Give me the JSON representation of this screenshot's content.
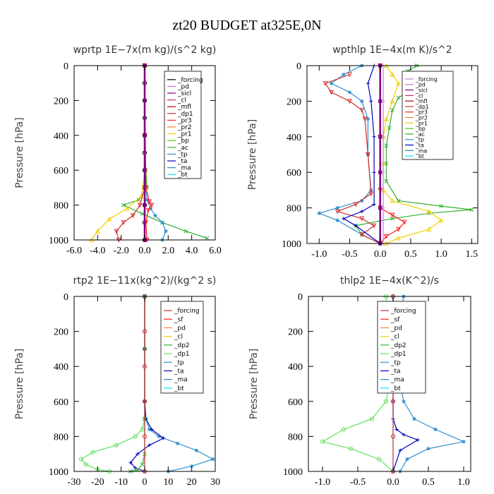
{
  "figure_title": "zt20  BUDGET at325E,0N",
  "chart_data": [
    {
      "type": "line",
      "title": "wprtp   1E−7x(m kg)/(s^2 kg)",
      "ylabel": "Pressure [hPa]",
      "xlabel": "",
      "xlim": [
        -6,
        6
      ],
      "ylim": [
        1000,
        0
      ],
      "xticks": [
        -6,
        -4,
        -2,
        0,
        2,
        4,
        6
      ],
      "xtick_labels": [
        "-6.0",
        "-4.0",
        "-2.0",
        "0.0",
        "2.0",
        "4.0",
        "6.0"
      ],
      "yticks": [
        0,
        200,
        400,
        600,
        800,
        1000
      ],
      "ytick_labels": [
        "0",
        "200",
        "400",
        "600",
        "800",
        "1000"
      ],
      "legend": [
        "_forcing",
        "_pd",
        "_sicl",
        "_cl",
        "_mfl",
        "_dp1",
        "_pr3",
        "_pr2",
        "_pr1",
        "_bp",
        "_ac",
        "_tp",
        "_ta",
        "_ma",
        "_bt"
      ],
      "legend_colors": [
        "#000000",
        "#d070d0",
        "#800080",
        "#c03060",
        "#a00000",
        "#d03030",
        "#ff2020",
        "#ff8040",
        "#f0d000",
        "#60c000",
        "#30b030",
        "#3090d0",
        "#0000c0",
        "#2090c0",
        "#00e0ff"
      ],
      "series": [
        {
          "color": "#000000",
          "marker": "o",
          "x": [
            0,
            0,
            0,
            0,
            0,
            0,
            0,
            0,
            0,
            0,
            0
          ],
          "y": [
            0,
            100,
            200,
            300,
            400,
            500,
            600,
            700,
            800,
            900,
            1000
          ]
        },
        {
          "color": "#30b030",
          "marker": "x",
          "x": [
            0,
            0,
            0.05,
            0.1,
            0.2,
            -0.5,
            -1.8,
            -0.2,
            1.5,
            3.5,
            5.3
          ],
          "y": [
            0,
            200,
            400,
            600,
            700,
            770,
            800,
            850,
            900,
            950,
            990
          ]
        },
        {
          "color": "#3090d0",
          "marker": "*",
          "x": [
            0,
            0,
            0,
            0.1,
            0.2,
            0.5,
            0.9,
            1.5,
            1.8,
            1.5
          ],
          "y": [
            0,
            300,
            600,
            700,
            770,
            820,
            860,
            900,
            950,
            1000
          ]
        },
        {
          "color": "#f0d000",
          "marker": "^",
          "x": [
            0,
            0,
            0.05,
            -0.3,
            -1.5,
            -3.0,
            -4.0,
            -4.5
          ],
          "y": [
            0,
            400,
            600,
            750,
            820,
            880,
            950,
            1000
          ]
        },
        {
          "color": "#d03030",
          "marker": "v",
          "x": [
            0,
            0,
            0,
            -0.4,
            -1.0,
            -1.8,
            -2.4,
            -2.2
          ],
          "y": [
            0,
            400,
            700,
            800,
            860,
            900,
            950,
            1000
          ]
        },
        {
          "color": "#ff2020",
          "marker": "v",
          "x": [
            0,
            0,
            0.1,
            0.4,
            0.6,
            0.3,
            0.1,
            0.2
          ],
          "y": [
            0,
            400,
            700,
            780,
            800,
            830,
            900,
            1000
          ]
        },
        {
          "color": "#800080",
          "marker": "s",
          "x": [
            0,
            0,
            0,
            0,
            0,
            0
          ],
          "y": [
            0,
            200,
            400,
            600,
            800,
            1000
          ]
        }
      ]
    },
    {
      "type": "line",
      "title": "wpthlp   1E−4x(m K)/s^2",
      "ylabel": "Pressure [hPa]",
      "xlabel": "",
      "xlim": [
        -1.2,
        1.6
      ],
      "ylim": [
        1000,
        0
      ],
      "xticks": [
        -1.0,
        -0.5,
        0.0,
        0.5,
        1.0,
        1.5
      ],
      "xtick_labels": [
        "-1.0",
        "-0.5",
        "0.0",
        "0.5",
        "1.0",
        "1.5"
      ],
      "yticks": [
        0,
        200,
        400,
        600,
        800,
        1000
      ],
      "ytick_labels": [
        "0",
        "200",
        "400",
        "600",
        "800",
        "1000"
      ],
      "legend": [
        "_forcing",
        "_pd",
        "_sicl",
        "_cl",
        "_mfl",
        "_dp1",
        "_pr3",
        "_pr2",
        "_pr1",
        "_bp",
        "_ac",
        "_tp",
        "_ta",
        "_ma",
        "_bt"
      ],
      "legend_colors": [
        "#c080e0",
        "#d070d0",
        "#800080",
        "#c03060",
        "#a00000",
        "#d03030",
        "#ff2020",
        "#ff8040",
        "#f0d000",
        "#60c000",
        "#30b030",
        "#3090d0",
        "#0000c0",
        "#2090c0",
        "#00e0ff"
      ],
      "series": [
        {
          "color": "#30b030",
          "marker": "x",
          "x": [
            0.6,
            0.45,
            0.5,
            0.7,
            0.5,
            0.3,
            0.2,
            0.15,
            0.1,
            0.1,
            0.1,
            0.3,
            1.0,
            1.5,
            0.8,
            0.2,
            -0.4,
            -0.3,
            0
          ],
          "y": [
            0,
            30,
            60,
            100,
            140,
            180,
            250,
            350,
            450,
            550,
            650,
            760,
            790,
            810,
            830,
            860,
            900,
            950,
            1000
          ]
        },
        {
          "color": "#f0d000",
          "marker": "^",
          "x": [
            0.1,
            0.2,
            0.3,
            0.2,
            0.1,
            0.05,
            0.05,
            0.05,
            0.2,
            0.8,
            1.0,
            0.8,
            0.3,
            0.1
          ],
          "y": [
            0,
            50,
            100,
            200,
            300,
            400,
            550,
            700,
            760,
            820,
            870,
            920,
            970,
            1000
          ]
        },
        {
          "color": "#3090d0",
          "marker": "*",
          "x": [
            -0.3,
            -0.6,
            -0.8,
            -0.5,
            -0.3,
            -0.2,
            -0.2,
            -0.15,
            -0.3,
            -0.7,
            -1.0,
            -0.7,
            -0.3,
            0
          ],
          "y": [
            0,
            50,
            100,
            150,
            200,
            300,
            500,
            700,
            760,
            800,
            830,
            870,
            950,
            1000
          ]
        },
        {
          "color": "#d03030",
          "marker": "v",
          "x": [
            -0.5,
            -0.9,
            -0.8,
            -0.5,
            -0.3,
            -0.25,
            -0.2,
            -0.15,
            -0.4,
            -0.7,
            -0.3,
            -0.1,
            -0.3,
            0
          ],
          "y": [
            50,
            100,
            150,
            200,
            250,
            300,
            500,
            720,
            780,
            820,
            860,
            900,
            950,
            1000
          ]
        },
        {
          "color": "#ff2020",
          "marker": "v",
          "x": [
            0,
            0,
            0,
            0,
            0.2,
            0.4,
            0.3,
            0.1,
            0
          ],
          "y": [
            0,
            400,
            700,
            800,
            840,
            880,
            920,
            960,
            1000
          ]
        },
        {
          "color": "#0000c0",
          "marker": "+",
          "x": [
            -0.1,
            -0.2,
            -0.15,
            -0.1,
            -0.1,
            -0.1,
            -0.3,
            -0.6,
            -0.4,
            0
          ],
          "y": [
            0,
            100,
            200,
            400,
            600,
            780,
            820,
            860,
            900,
            1000
          ]
        },
        {
          "color": "#800080",
          "marker": "s",
          "x": [
            0,
            0,
            0,
            0,
            0,
            0
          ],
          "y": [
            0,
            200,
            400,
            600,
            800,
            1000
          ]
        },
        {
          "color": "#c080e0",
          "marker": "+",
          "x": [
            0.05,
            0.05,
            0.05,
            0.05,
            0.05,
            0.05
          ],
          "y": [
            0,
            200,
            400,
            600,
            800,
            1000
          ]
        }
      ]
    },
    {
      "type": "line",
      "title": "rtp2   1E−11x(kg^2)/(kg^2 s)",
      "ylabel": "Pressure [hPa]",
      "xlabel": "",
      "xlim": [
        -30,
        30
      ],
      "ylim": [
        1000,
        0
      ],
      "xticks": [
        -30,
        -20,
        -10,
        0,
        10,
        20,
        30
      ],
      "xtick_labels": [
        "-30",
        "-20",
        "-10",
        "0",
        "10",
        "20",
        "30"
      ],
      "yticks": [
        0,
        200,
        400,
        600,
        800,
        1000
      ],
      "ytick_labels": [
        "0",
        "200",
        "400",
        "600",
        "800",
        "1000"
      ],
      "legend": [
        "_forcing",
        "_sf",
        "_pd",
        "_cl",
        "_dp2",
        "_dp1",
        "_tp",
        "_ta",
        "_ma",
        "_bt"
      ],
      "legend_colors": [
        "#c03030",
        "#ff2020",
        "#ff8040",
        "#f0d000",
        "#30b030",
        "#60e060",
        "#3090d0",
        "#0000c0",
        "#2090c0",
        "#00e0ff"
      ],
      "series": [
        {
          "color": "#60e060",
          "marker": "o",
          "x": [
            0,
            0,
            0,
            0,
            -1,
            -4,
            -12,
            -22,
            -27,
            -25,
            -20,
            -15
          ],
          "y": [
            0,
            300,
            600,
            700,
            760,
            800,
            850,
            890,
            930,
            960,
            990,
            1000
          ]
        },
        {
          "color": "#3090d0",
          "marker": "*",
          "x": [
            0,
            0,
            0,
            0.5,
            2,
            6,
            14,
            22,
            29,
            20,
            10
          ],
          "y": [
            0,
            300,
            600,
            700,
            760,
            800,
            840,
            880,
            930,
            970,
            1000
          ]
        },
        {
          "color": "#0000c0",
          "marker": "+",
          "x": [
            0,
            0,
            0,
            0.5,
            3,
            8,
            2,
            -3,
            -6,
            -4,
            0
          ],
          "y": [
            0,
            300,
            600,
            700,
            760,
            810,
            850,
            900,
            950,
            980,
            1000
          ]
        },
        {
          "color": "#30b030",
          "marker": "x",
          "x": [
            0,
            0,
            0,
            0,
            -1,
            -3,
            -6
          ],
          "y": [
            0,
            300,
            700,
            900,
            960,
            990,
            1000
          ]
        },
        {
          "color": "#c03030",
          "marker": "o",
          "x": [
            0,
            0,
            0,
            0,
            0,
            0
          ],
          "y": [
            0,
            200,
            400,
            600,
            800,
            1000
          ]
        }
      ]
    },
    {
      "type": "line",
      "title": "thlp2   1E−4x(K^2)/s",
      "ylabel": "Pressure [hPa]",
      "xlabel": "",
      "xlim": [
        -1.2,
        1.1
      ],
      "ylim": [
        1000,
        0
      ],
      "xticks": [
        -1.0,
        -0.5,
        0.0,
        0.5,
        1.0
      ],
      "xtick_labels": [
        "-1.0",
        "-0.5",
        "0.0",
        "0.5",
        "1.0"
      ],
      "yticks": [
        0,
        200,
        400,
        600,
        800,
        1000
      ],
      "ytick_labels": [
        "0",
        "200",
        "400",
        "600",
        "800",
        "1000"
      ],
      "legend": [
        "_forcing",
        "_sf",
        "_pd",
        "_cl",
        "_dp2",
        "_dp1",
        "_tp",
        "_ta",
        "_ma",
        "_bt"
      ],
      "legend_colors": [
        "#c03030",
        "#ff2020",
        "#ff8040",
        "#f0d000",
        "#30b030",
        "#60e060",
        "#3090d0",
        "#0000c0",
        "#2090c0",
        "#00e0ff"
      ],
      "series": [
        {
          "color": "#3090d0",
          "marker": "*",
          "x": [
            0.15,
            0.1,
            0.12,
            0.1,
            0.08,
            0.1,
            0.15,
            0.3,
            0.6,
            1.0,
            0.5,
            0.2,
            0.1
          ],
          "y": [
            0,
            100,
            200,
            300,
            400,
            500,
            600,
            700,
            760,
            830,
            870,
            930,
            1000
          ]
        },
        {
          "color": "#60e060",
          "marker": "o",
          "x": [
            -0.1,
            -0.08,
            -0.1,
            -0.08,
            -0.05,
            -0.05,
            -0.1,
            -0.3,
            -0.7,
            -1.0,
            -0.6,
            -0.2,
            0
          ],
          "y": [
            0,
            100,
            200,
            300,
            400,
            500,
            600,
            700,
            760,
            830,
            870,
            930,
            1000
          ]
        },
        {
          "color": "#0000c0",
          "marker": "+",
          "x": [
            0,
            0,
            0,
            0,
            0.05,
            0.15,
            0.35,
            0.1,
            0
          ],
          "y": [
            0,
            300,
            600,
            700,
            760,
            790,
            820,
            880,
            1000
          ]
        },
        {
          "color": "#c03030",
          "marker": "o",
          "x": [
            0,
            0,
            0,
            0,
            0,
            0
          ],
          "y": [
            0,
            200,
            400,
            600,
            800,
            1000
          ]
        }
      ]
    }
  ]
}
